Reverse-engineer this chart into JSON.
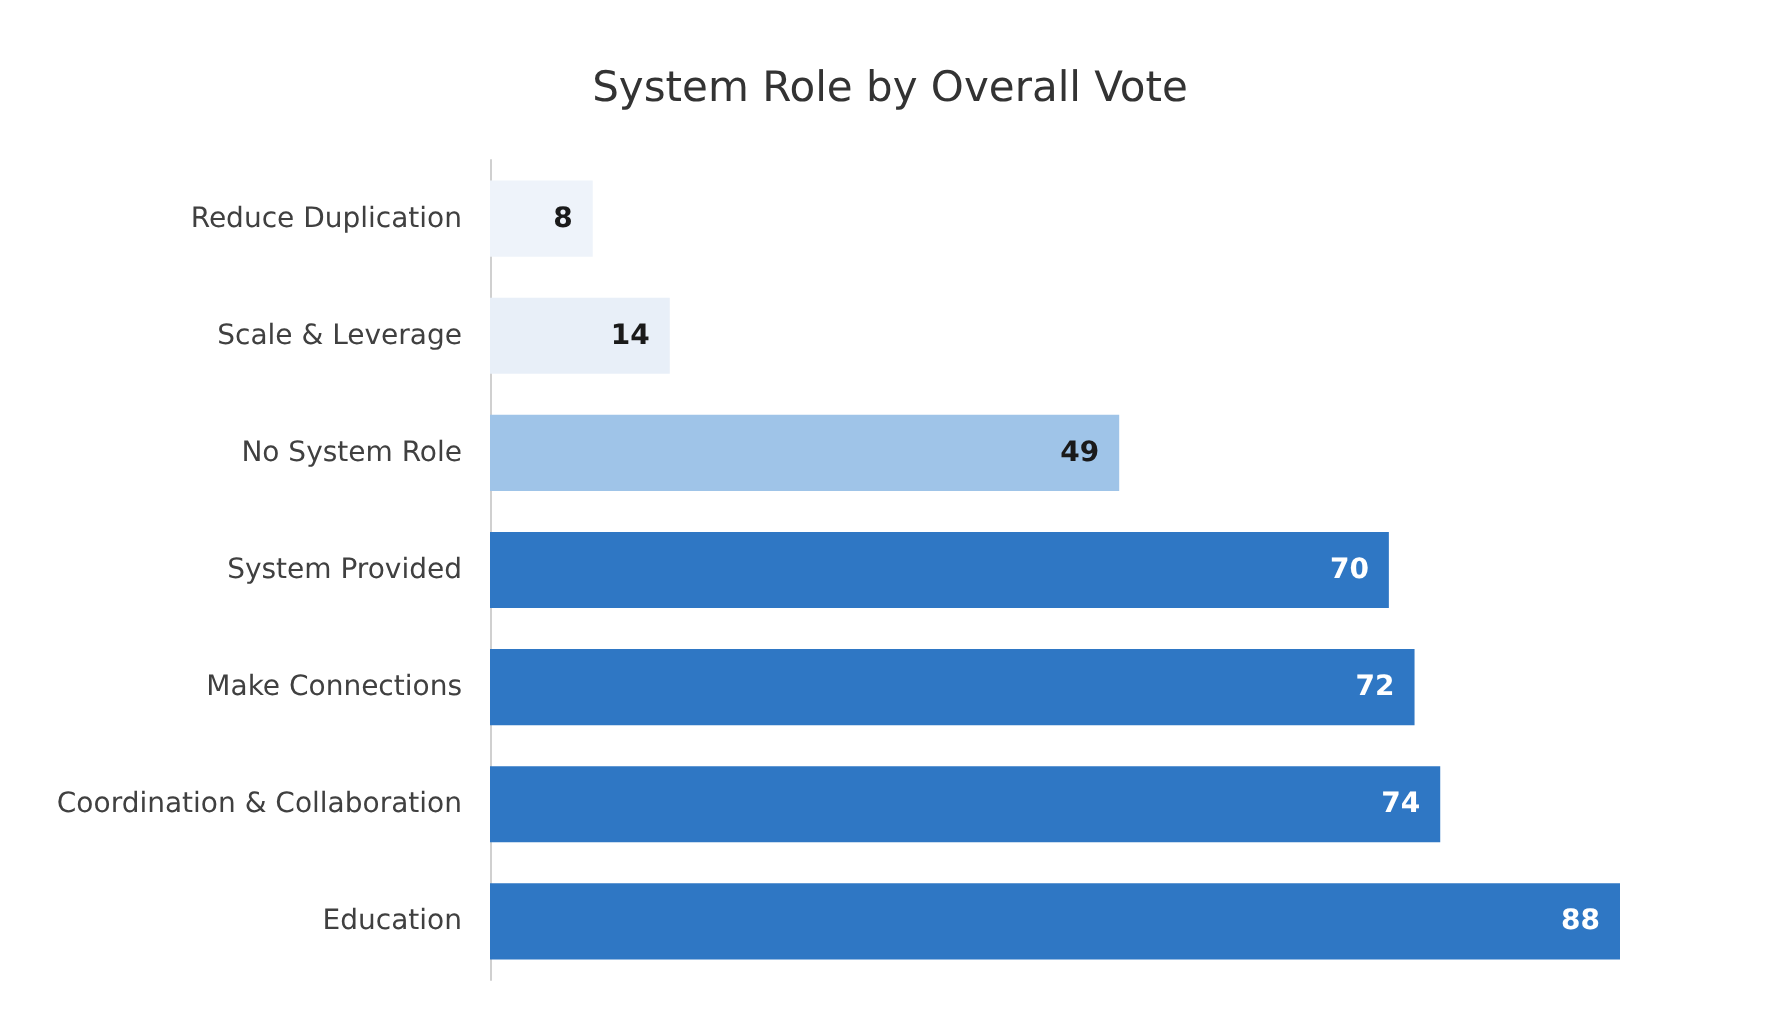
{
  "chart_data": {
    "type": "bar",
    "orientation": "horizontal",
    "title": "System Role by Overall Vote",
    "categories": [
      "Reduce Duplication",
      "Scale & Leverage",
      "No System Role",
      "System Provided",
      "Make Connections",
      "Coordination & Collaboration",
      "Education"
    ],
    "values": [
      8,
      14,
      49,
      70,
      72,
      74,
      88
    ],
    "colors": [
      "#eef3fa",
      "#e8eff8",
      "#9fc4e8",
      "#2f77c4",
      "#2f77c4",
      "#2f77c4",
      "#2f77c4"
    ],
    "data_labels": true
  }
}
